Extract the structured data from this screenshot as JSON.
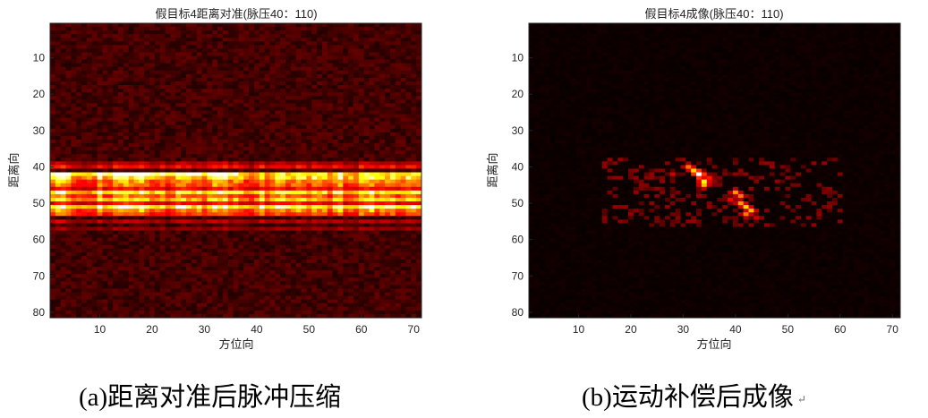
{
  "chart_data": [
    {
      "type": "heatmap",
      "title": "假目标4距离对准(脉压40：110)",
      "xlabel": "方位向",
      "ylabel": "距离向",
      "xlim": [
        0.5,
        71.5
      ],
      "ylim": [
        0.5,
        81.5
      ],
      "y_reversed": true,
      "xticks": [
        10,
        20,
        30,
        40,
        50,
        60,
        70
      ],
      "yticks": [
        10,
        20,
        30,
        40,
        50,
        60,
        70,
        80
      ],
      "n_cols": 71,
      "n_rows": 81,
      "colormap": "hot",
      "background_level": 0.1,
      "bands": [
        {
          "row": 42,
          "level": 0.95
        },
        {
          "row": 43,
          "level": 0.7
        },
        {
          "row": 44,
          "level": 0.55
        },
        {
          "row": 45,
          "level": 0.5
        },
        {
          "row": 46,
          "level": 0.35
        },
        {
          "row": 47,
          "level": 0.75
        },
        {
          "row": 48,
          "level": 0.5
        },
        {
          "row": 49,
          "level": 0.65
        },
        {
          "row": 50,
          "level": 0.35
        },
        {
          "row": 51,
          "level": 0.8
        },
        {
          "row": 52,
          "level": 0.55
        },
        {
          "row": 53,
          "level": 0.45
        },
        {
          "row": 40,
          "level": 0.35
        },
        {
          "row": 39,
          "level": 0.25
        },
        {
          "row": 55,
          "level": 0.25
        },
        {
          "row": 57,
          "level": 0.2
        }
      ]
    },
    {
      "type": "heatmap",
      "title": "假目标4成像(脉压40：110)",
      "xlabel": "方位向",
      "ylabel": "距离向",
      "xlim": [
        0.5,
        71.5
      ],
      "ylim": [
        0.5,
        81.5
      ],
      "y_reversed": true,
      "xticks": [
        10,
        20,
        30,
        40,
        50,
        60,
        70
      ],
      "yticks": [
        10,
        20,
        30,
        40,
        50,
        60,
        70,
        80
      ],
      "n_cols": 71,
      "n_rows": 81,
      "colormap": "hot",
      "background_level": 0.02,
      "peaks": [
        {
          "x": 33,
          "y": 42,
          "level": 1.0
        },
        {
          "x": 32,
          "y": 41,
          "level": 0.7
        },
        {
          "x": 31,
          "y": 40,
          "level": 0.55
        },
        {
          "x": 34,
          "y": 44,
          "level": 0.75
        },
        {
          "x": 34,
          "y": 45,
          "level": 0.65
        },
        {
          "x": 35,
          "y": 43,
          "level": 0.4
        },
        {
          "x": 40,
          "y": 47,
          "level": 0.6
        },
        {
          "x": 41,
          "y": 48,
          "level": 0.55
        },
        {
          "x": 41,
          "y": 50,
          "level": 0.6
        },
        {
          "x": 42,
          "y": 51,
          "level": 0.7
        },
        {
          "x": 43,
          "y": 52,
          "level": 0.65
        },
        {
          "x": 42,
          "y": 53,
          "level": 0.55
        },
        {
          "x": 39,
          "y": 49,
          "level": 0.35
        },
        {
          "x": 28,
          "y": 42,
          "level": 0.3
        },
        {
          "x": 44,
          "y": 54,
          "level": 0.3
        }
      ]
    }
  ],
  "captions": {
    "a": "(a)距离对准后脉冲压缩",
    "b": "(b)运动补偿后成像"
  }
}
